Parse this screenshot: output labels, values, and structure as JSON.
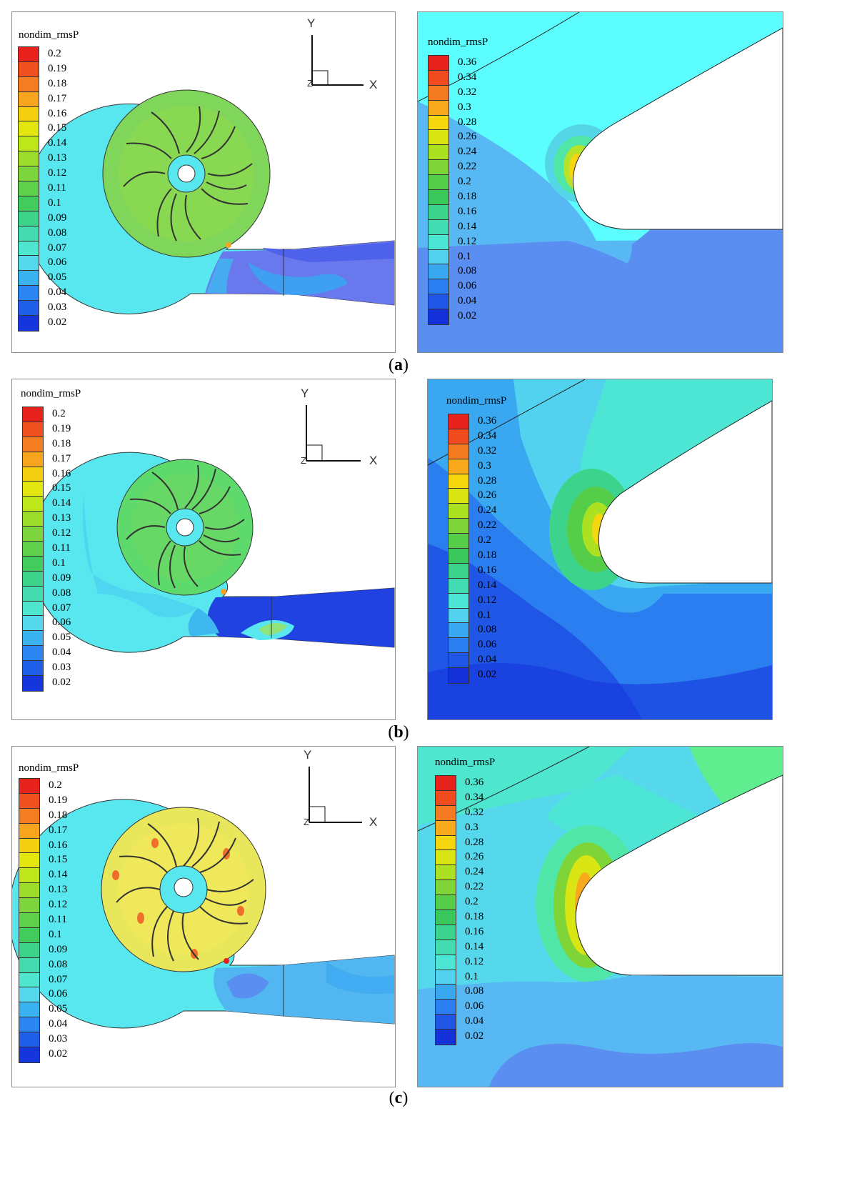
{
  "legend_title": "nondim_rmsP",
  "left_scale": [
    "0.2",
    "0.19",
    "0.18",
    "0.17",
    "0.16",
    "0.15",
    "0.14",
    "0.13",
    "0.12",
    "0.11",
    "0.1",
    "0.09",
    "0.08",
    "0.07",
    "0.06",
    "0.05",
    "0.04",
    "0.03",
    "0.02"
  ],
  "right_scale": [
    "0.36",
    "0.34",
    "0.32",
    "0.3",
    "0.28",
    "0.26",
    "0.24",
    "0.22",
    "0.2",
    "0.18",
    "0.16",
    "0.14",
    "0.12",
    "0.1",
    "0.08",
    "0.06",
    "0.04",
    "0.02"
  ],
  "colors_left": [
    "#e8231e",
    "#ef5020",
    "#f47d22",
    "#f7a41f",
    "#f4cf10",
    "#e3e60f",
    "#bfe51b",
    "#9edc2c",
    "#7dd43d",
    "#5ed04b",
    "#43cc5e",
    "#3dd38a",
    "#44dcae",
    "#4fe6cf",
    "#55d8ec",
    "#3bb2f0",
    "#2b86f1",
    "#1f5fe8",
    "#1535dd"
  ],
  "colors_right": [
    "#e8231e",
    "#f04b1f",
    "#f57b22",
    "#f8a91c",
    "#f6d60f",
    "#d9e614",
    "#ace121",
    "#7fd437",
    "#56cd49",
    "#3ac85c",
    "#3cd48d",
    "#43dcb2",
    "#4de6d5",
    "#52d2ee",
    "#3aa8f1",
    "#2a7ef0",
    "#1f56e6",
    "#1430d9"
  ],
  "axes": {
    "x": "X",
    "y": "Y",
    "z": "Z"
  },
  "captions": [
    {
      "letter": "a",
      "open": "(",
      "close": ")"
    },
    {
      "letter": "b",
      "open": "(",
      "close": ")"
    },
    {
      "letter": "c",
      "open": "(",
      "close": ")"
    }
  ]
}
